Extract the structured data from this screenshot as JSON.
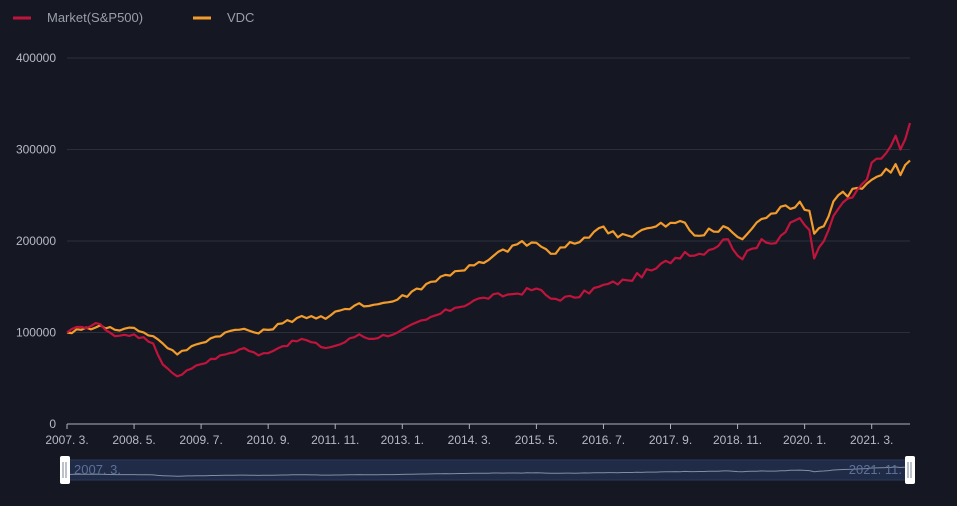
{
  "chart_data": {
    "type": "line",
    "title": "",
    "xlabel": "",
    "ylabel": "",
    "ylim": [
      0,
      400000
    ],
    "y_ticks": [
      0,
      100000,
      200000,
      300000,
      400000
    ],
    "x_start": "2007-03",
    "x_end": "2021-11",
    "x_ticks": [
      "2007. 3.",
      "2008. 5.",
      "2009. 7.",
      "2010. 9.",
      "2011. 11.",
      "2013. 1.",
      "2014. 3.",
      "2015. 5.",
      "2016. 7.",
      "2017. 9.",
      "2018. 11.",
      "2020. 1.",
      "2021. 3."
    ],
    "grid": true,
    "legend_position": "top-left",
    "series": [
      {
        "name": "Market(S&P500)",
        "color": "#c0143c",
        "key_points": [
          [
            "2007-03",
            100000
          ],
          [
            "2007-06",
            106000
          ],
          [
            "2007-10",
            109000
          ],
          [
            "2008-01",
            96000
          ],
          [
            "2008-05",
            98000
          ],
          [
            "2008-09",
            88000
          ],
          [
            "2008-11",
            65000
          ],
          [
            "2009-02",
            52000
          ],
          [
            "2009-06",
            64000
          ],
          [
            "2009-12",
            76000
          ],
          [
            "2010-04",
            83000
          ],
          [
            "2010-07",
            75000
          ],
          [
            "2010-12",
            85000
          ],
          [
            "2011-04",
            93000
          ],
          [
            "2011-09",
            83000
          ],
          [
            "2011-12",
            87000
          ],
          [
            "2012-04",
            98000
          ],
          [
            "2012-06",
            93000
          ],
          [
            "2012-12",
            100000
          ],
          [
            "2013-06",
            114000
          ],
          [
            "2013-12",
            127000
          ],
          [
            "2014-06",
            138000
          ],
          [
            "2014-12",
            142000
          ],
          [
            "2015-05",
            148000
          ],
          [
            "2015-08",
            137000
          ],
          [
            "2016-01",
            138000
          ],
          [
            "2016-06",
            150000
          ],
          [
            "2016-12",
            157000
          ],
          [
            "2017-06",
            170000
          ],
          [
            "2017-12",
            188000
          ],
          [
            "2018-02",
            184000
          ],
          [
            "2018-09",
            202000
          ],
          [
            "2018-12",
            180000
          ],
          [
            "2019-04",
            202000
          ],
          [
            "2019-06",
            197000
          ],
          [
            "2019-12",
            225000
          ],
          [
            "2020-02",
            212000
          ],
          [
            "2020-03",
            181000
          ],
          [
            "2020-06",
            212000
          ],
          [
            "2020-08",
            235000
          ],
          [
            "2020-12",
            256000
          ],
          [
            "2021-04",
            290000
          ],
          [
            "2021-08",
            315000
          ],
          [
            "2021-09",
            300000
          ],
          [
            "2021-11",
            329000
          ]
        ]
      },
      {
        "name": "VDC",
        "color": "#f39c2b",
        "key_points": [
          [
            "2007-03",
            100000
          ],
          [
            "2007-06",
            103000
          ],
          [
            "2007-10",
            108000
          ],
          [
            "2008-01",
            103000
          ],
          [
            "2008-05",
            105000
          ],
          [
            "2008-09",
            96000
          ],
          [
            "2008-11",
            88000
          ],
          [
            "2009-02",
            76000
          ],
          [
            "2009-06",
            87000
          ],
          [
            "2009-12",
            100000
          ],
          [
            "2010-04",
            104000
          ],
          [
            "2010-07",
            99000
          ],
          [
            "2010-12",
            110000
          ],
          [
            "2011-04",
            118000
          ],
          [
            "2011-09",
            115000
          ],
          [
            "2011-12",
            124000
          ],
          [
            "2012-04",
            132000
          ],
          [
            "2012-06",
            129000
          ],
          [
            "2012-12",
            136000
          ],
          [
            "2013-06",
            153000
          ],
          [
            "2013-12",
            167000
          ],
          [
            "2014-06",
            176000
          ],
          [
            "2014-12",
            195000
          ],
          [
            "2015-05",
            198000
          ],
          [
            "2015-08",
            186000
          ],
          [
            "2016-01",
            197000
          ],
          [
            "2016-06",
            214000
          ],
          [
            "2016-12",
            206000
          ],
          [
            "2017-06",
            216000
          ],
          [
            "2017-12",
            220000
          ],
          [
            "2018-02",
            206000
          ],
          [
            "2018-09",
            214000
          ],
          [
            "2018-12",
            202000
          ],
          [
            "2019-04",
            224000
          ],
          [
            "2019-06",
            230000
          ],
          [
            "2019-12",
            243000
          ],
          [
            "2020-02",
            233000
          ],
          [
            "2020-03",
            208000
          ],
          [
            "2020-06",
            227000
          ],
          [
            "2020-08",
            250000
          ],
          [
            "2020-12",
            258000
          ],
          [
            "2021-04",
            270000
          ],
          [
            "2021-08",
            284000
          ],
          [
            "2021-09",
            272000
          ],
          [
            "2021-11",
            288000
          ]
        ]
      }
    ]
  },
  "data_zoom": {
    "start_label": "2007. 3.",
    "end_label": "2021. 11."
  }
}
